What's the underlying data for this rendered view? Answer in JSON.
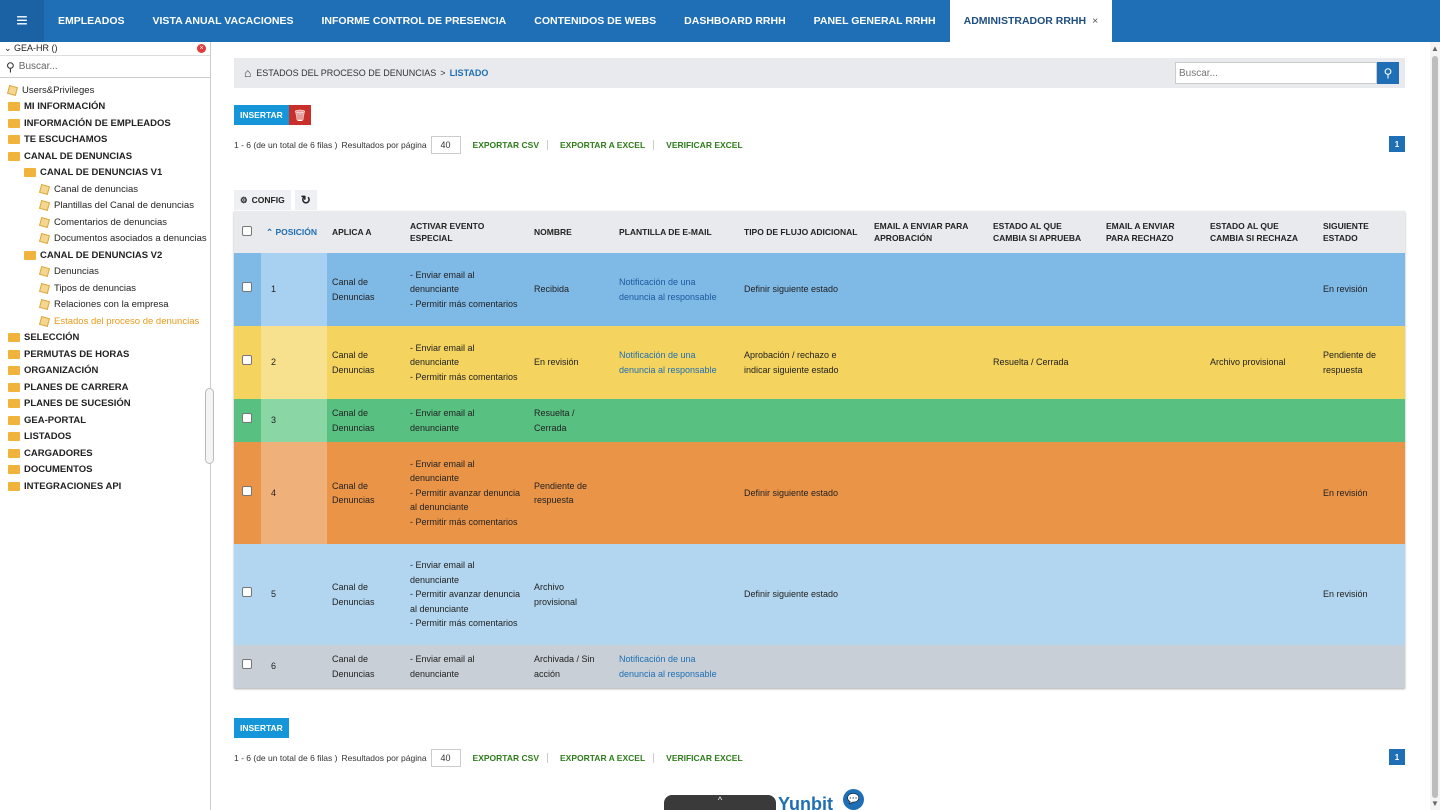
{
  "topbar": {
    "tabs": [
      {
        "label": "EMPLEADOS"
      },
      {
        "label": "VISTA ANUAL VACACIONES"
      },
      {
        "label": "INFORME CONTROL DE PRESENCIA"
      },
      {
        "label": "CONTENIDOS DE WEBS"
      },
      {
        "label": "DASHBOARD RRHH"
      },
      {
        "label": "PANEL GENERAL RRHH"
      },
      {
        "label": "ADMINISTRADOR RRHH"
      }
    ],
    "close_glyph": "×"
  },
  "sidebar": {
    "header": "GEA-HR ()",
    "search_placeholder": "Buscar...",
    "items": [
      {
        "label": "Users&Privileges"
      },
      {
        "label": "MI INFORMACIÓN"
      },
      {
        "label": "INFORMACIÓN DE EMPLEADOS"
      },
      {
        "label": "TE ESCUCHAMOS"
      },
      {
        "label": "CANAL DE DENUNCIAS"
      },
      {
        "label": "CANAL DE DENUNCIAS V1"
      },
      {
        "label": "Canal de denuncias"
      },
      {
        "label": "Plantillas del Canal de denuncias"
      },
      {
        "label": "Comentarios de denuncias"
      },
      {
        "label": "Documentos asociados a denuncias"
      },
      {
        "label": "CANAL DE DENUNCIAS V2"
      },
      {
        "label": "Denuncias"
      },
      {
        "label": "Tipos de denuncias"
      },
      {
        "label": "Relaciones con la empresa"
      },
      {
        "label": "Estados del proceso de denuncias"
      },
      {
        "label": "SELECCIÓN"
      },
      {
        "label": "PERMUTAS DE HORAS"
      },
      {
        "label": "ORGANIZACIÓN"
      },
      {
        "label": "PLANES DE CARRERA"
      },
      {
        "label": "PLANES DE SUCESIÓN"
      },
      {
        "label": "GEA-PORTAL"
      },
      {
        "label": "LISTADOS"
      },
      {
        "label": "CARGADORES"
      },
      {
        "label": "DOCUMENTOS"
      },
      {
        "label": "INTEGRACIONES API"
      }
    ]
  },
  "breadcrumb": {
    "parent": "ESTADOS DEL PROCESO DE DENUNCIAS",
    "separator": ">",
    "current": "LISTADO",
    "search_placeholder": "Buscar..."
  },
  "toolbar": {
    "insert_label": "INSERTAR",
    "config_label": "CONFIG"
  },
  "pager": {
    "summary": "1 - 6 (de un total de 6 filas )",
    "per_page_label": "Resultados por página",
    "per_page": "40",
    "export_csv": "EXPORTAR CSV",
    "export_excel": "EXPORTAR A EXCEL",
    "verify_excel": "VERIFICAR EXCEL",
    "page": "1"
  },
  "table": {
    "headers": {
      "posicion": "POSICIÓN",
      "aplica": "APLICA A",
      "activar": "ACTIVAR EVENTO ESPECIAL",
      "nombre": "NOMBRE",
      "plantilla": "PLANTILLA DE E-MAIL",
      "flujo": "TIPO DE FLUJO ADICIONAL",
      "email_aprob": "EMAIL A ENVIAR PARA APROBACIÓN",
      "estado_aprueba": "ESTADO AL QUE CAMBIA SI APRUEBA",
      "email_rechazo": "EMAIL A ENVIAR PARA RECHAZO",
      "estado_rechaza": "ESTADO AL QUE CAMBIA SI RECHAZA",
      "siguiente": "SIGUIENTE ESTADO"
    },
    "rows": [
      {
        "posicion": "1",
        "aplica": "Canal de Denuncias",
        "activar": [
          "- Enviar email al denunciante",
          "- Permitir más comentarios"
        ],
        "nombre": "Recibida",
        "plantilla": "Notificación de una denuncia al responsable",
        "flujo": "Definir siguiente estado",
        "email_aprob": "",
        "estado_aprueba": "",
        "email_rechazo": "",
        "estado_rechaza": "",
        "siguiente": "En revisión"
      },
      {
        "posicion": "2",
        "aplica": "Canal de Denuncias",
        "activar": [
          "- Enviar email al denunciante",
          "- Permitir más comentarios"
        ],
        "nombre": "En revisión",
        "plantilla": "Notificación de una denuncia al responsable",
        "flujo": "Aprobación / rechazo e indicar siguiente estado",
        "email_aprob": "",
        "estado_aprueba": "Resuelta / Cerrada",
        "email_rechazo": "",
        "estado_rechaza": "Archivo provisional",
        "siguiente": "Pendiente de respuesta"
      },
      {
        "posicion": "3",
        "aplica": "Canal de Denuncias",
        "activar": [
          "- Enviar email al denunciante"
        ],
        "nombre": "Resuelta / Cerrada",
        "plantilla": "",
        "flujo": "",
        "email_aprob": "",
        "estado_aprueba": "",
        "email_rechazo": "",
        "estado_rechaza": "",
        "siguiente": ""
      },
      {
        "posicion": "4",
        "aplica": "Canal de Denuncias",
        "activar": [
          "- Enviar email al denunciante",
          "- Permitir avanzar denuncia al denunciante",
          "- Permitir más comentarios"
        ],
        "nombre": "Pendiente de respuesta",
        "plantilla": "",
        "flujo": "Definir siguiente estado",
        "email_aprob": "",
        "estado_aprueba": "",
        "email_rechazo": "",
        "estado_rechaza": "",
        "siguiente": "En revisión"
      },
      {
        "posicion": "5",
        "aplica": "Canal de Denuncias",
        "activar": [
          "- Enviar email al denunciante",
          "- Permitir avanzar denuncia al denunciante",
          "- Permitir más comentarios"
        ],
        "nombre": "Archivo provisional",
        "plantilla": "",
        "flujo": "Definir siguiente estado",
        "email_aprob": "",
        "estado_aprueba": "",
        "email_rechazo": "",
        "estado_rechaza": "",
        "siguiente": "En revisión"
      },
      {
        "posicion": "6",
        "aplica": "Canal de Denuncias",
        "activar": [
          "- Enviar email al denunciante"
        ],
        "nombre": "Archivada / Sin acción",
        "plantilla": "Notificación de una denuncia al responsable",
        "flujo": "",
        "email_aprob": "",
        "estado_aprueba": "",
        "email_rechazo": "",
        "estado_rechaza": "",
        "siguiente": ""
      }
    ]
  },
  "footer": {
    "brand": "Yunbit",
    "collapse_glyph": "^"
  },
  "colors": {
    "primary": "#1e6fb5",
    "row1": "#7fb9e6",
    "row2": "#f4d35e",
    "row3": "#58c081",
    "row4": "#ea9448",
    "row5": "#b2d6ef",
    "row6": "#c8cfd6",
    "export_link": "#2e7d1a",
    "delete": "#c9302c"
  },
  "icons": {
    "menu": "hamburger-icon",
    "home": "home-icon",
    "search": "search-icon",
    "trash": "trash-icon",
    "gear": "gear-icon",
    "refresh": "refresh-icon",
    "sort": "sort-asc-icon",
    "chat": "chat-icon"
  }
}
